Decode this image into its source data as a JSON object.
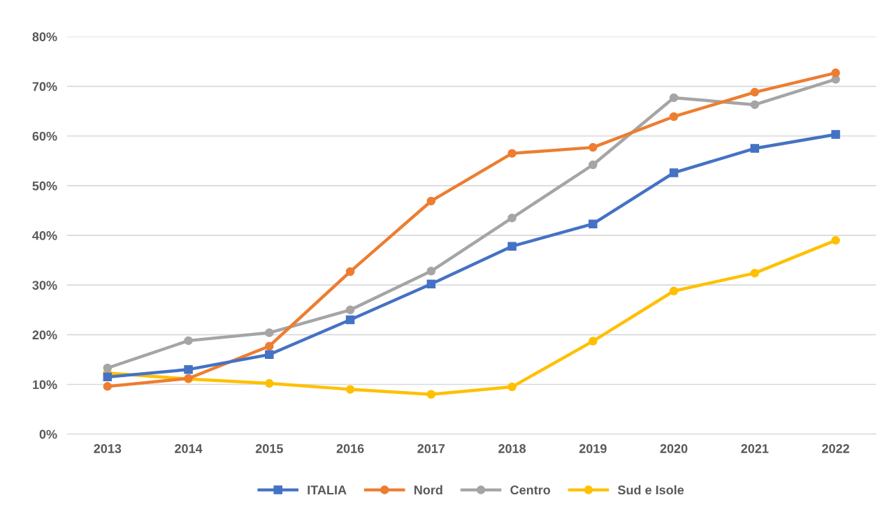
{
  "chart_data": {
    "type": "line",
    "categories": [
      "2013",
      "2014",
      "2015",
      "2016",
      "2017",
      "2018",
      "2019",
      "2020",
      "2021",
      "2022"
    ],
    "series": [
      {
        "name": "ITALIA",
        "color": "#4472c4",
        "marker": "square",
        "values": [
          11.5,
          13.0,
          16.0,
          23.0,
          30.2,
          37.8,
          42.3,
          52.6,
          57.5,
          60.3
        ]
      },
      {
        "name": "Nord",
        "color": "#ed7d31",
        "marker": "circle",
        "values": [
          9.6,
          11.2,
          17.7,
          32.7,
          46.9,
          56.5,
          57.7,
          63.9,
          68.8,
          72.7
        ]
      },
      {
        "name": "Centro",
        "color": "#a5a5a5",
        "marker": "circle",
        "values": [
          13.3,
          18.8,
          20.4,
          25.0,
          32.8,
          43.5,
          54.2,
          67.7,
          66.3,
          71.4
        ]
      },
      {
        "name": "Sud e Isole",
        "color": "#ffc000",
        "marker": "circle",
        "values": [
          12.3,
          11.1,
          10.2,
          9.0,
          8.0,
          9.5,
          18.7,
          28.8,
          32.4,
          39.0
        ]
      }
    ],
    "ylim": [
      0,
      80
    ],
    "yticks": [
      {
        "value": 0,
        "label": "0%"
      },
      {
        "value": 10,
        "label": "10%"
      },
      {
        "value": 20,
        "label": "20%"
      },
      {
        "value": 30,
        "label": "30%"
      },
      {
        "value": 40,
        "label": "40%"
      },
      {
        "value": 50,
        "label": "50%"
      },
      {
        "value": 60,
        "label": "60%"
      },
      {
        "value": 70,
        "label": "70%"
      },
      {
        "value": 80,
        "label": "80%"
      }
    ],
    "grid": "y",
    "legend": "bottom"
  }
}
